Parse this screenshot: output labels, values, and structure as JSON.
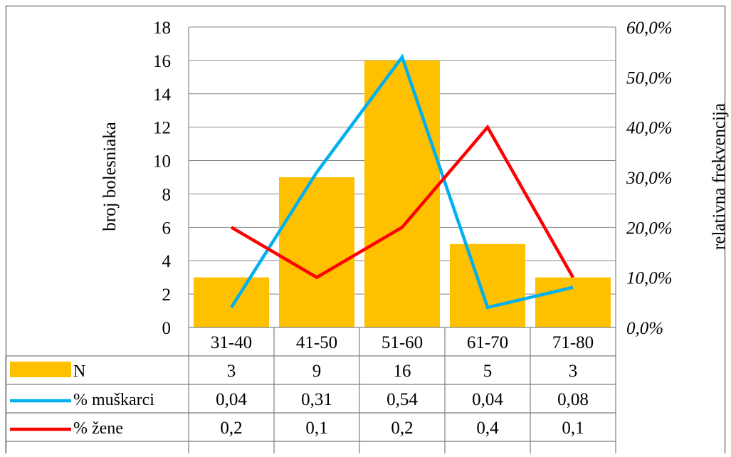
{
  "chart_data": {
    "type": "bar",
    "categories": [
      "31-40",
      "41-50",
      "51-60",
      "61-70",
      "71-80"
    ],
    "bar_series": {
      "name": "N",
      "values": [
        3,
        9,
        16,
        5,
        3
      ],
      "color": "#FFC000"
    },
    "line_series": [
      {
        "name": "% muškarci",
        "values": [
          0.04,
          0.31,
          0.54,
          0.04,
          0.08
        ],
        "color": "#00B0F0"
      },
      {
        "name": "% žene",
        "values": [
          0.2,
          0.1,
          0.2,
          0.4,
          0.1
        ],
        "color": "#FF0000"
      }
    ],
    "table_values": [
      [
        "3",
        "9",
        "16",
        "5",
        "3"
      ],
      [
        "0,04",
        "0,31",
        "0,54",
        "0,04",
        "0,08"
      ],
      [
        "0,2",
        "0,1",
        "0,2",
        "0,4",
        "0,1"
      ]
    ],
    "ylabel": "broj bolesniaka",
    "y2label": "relativna frekvencija",
    "ylim": [
      0,
      18
    ],
    "y_ticks": [
      "0",
      "2",
      "4",
      "6",
      "8",
      "10",
      "12",
      "14",
      "16",
      "18"
    ],
    "y2lim": [
      0,
      0.6
    ],
    "y2_ticks": [
      "0,0%",
      "10,0%",
      "20,0%",
      "30,0%",
      "40,0%",
      "50,0%",
      "60,0%"
    ],
    "grid": true,
    "legend": "data-table"
  }
}
